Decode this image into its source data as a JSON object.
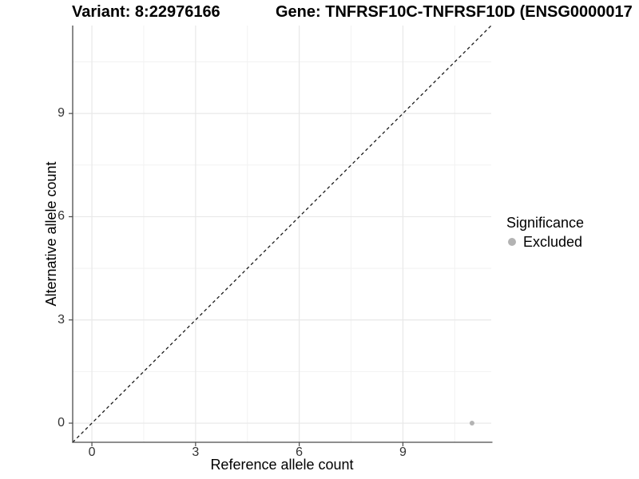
{
  "figure": {
    "title_variant": "Variant: 8:22976166",
    "title_gene": "Gene: TNFRSF10C-TNFRSF10D (ENSG0000017",
    "background": "#ffffff"
  },
  "chart_data": {
    "type": "scatter",
    "title": "Variant: 8:22976166   Gene: TNFRSF10C-TNFRSF10D (ENSG0000017",
    "xlabel": "Reference allele count",
    "ylabel": "Alternative allele count",
    "xlim": [
      -0.556,
      11.556
    ],
    "ylim": [
      -0.556,
      11.556
    ],
    "x_major_ticks": [
      0,
      3,
      6,
      9
    ],
    "y_major_ticks": [
      0,
      3,
      6,
      9
    ],
    "x_minor_ticks": [
      1.5,
      4.5,
      7.5,
      10.5
    ],
    "y_minor_ticks": [
      1.5,
      4.5,
      7.5,
      10.5
    ],
    "grid": true,
    "reference_line": {
      "type": "identity",
      "equation": "y = x",
      "style": "dashed"
    },
    "series": [
      {
        "name": "Excluded",
        "points": [
          {
            "x": 11,
            "y": 0
          }
        ]
      }
    ],
    "legend": {
      "title": "Significance",
      "position": "right",
      "items": [
        {
          "label": "Excluded"
        }
      ]
    }
  },
  "colors": {
    "point": "#b3b3b3",
    "legend_key": "#b3b3b3",
    "grid_major": "#e8e8e8",
    "grid_minor": "#f2f2f2",
    "axis_line": "#4a4a4a",
    "tick_mark": "#4a4a4a",
    "tick_label": "#333333",
    "reference_line": "#1a1a1a",
    "text": "#000000"
  }
}
